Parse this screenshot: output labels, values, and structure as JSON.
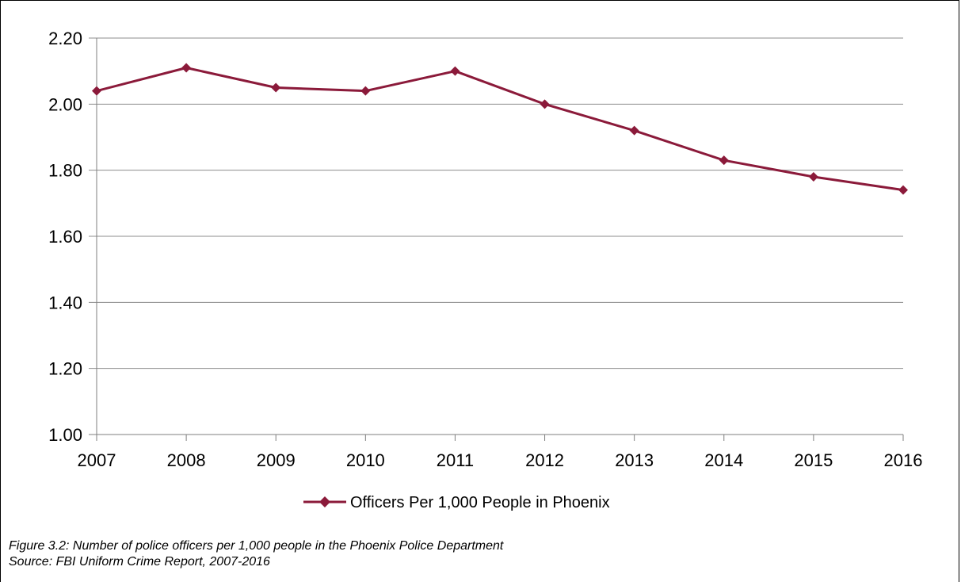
{
  "chart_data": {
    "type": "line",
    "categories": [
      "2007",
      "2008",
      "2009",
      "2010",
      "2011",
      "2012",
      "2013",
      "2014",
      "2015",
      "2016"
    ],
    "series": [
      {
        "name": "Officers Per 1,000 People in Phoenix",
        "values": [
          2.04,
          2.11,
          2.05,
          2.04,
          2.1,
          2.0,
          1.92,
          1.83,
          1.78,
          1.74
        ],
        "color": "#8B1A3A",
        "marker": "diamond"
      }
    ],
    "y_ticks": [
      "1.00",
      "1.20",
      "1.40",
      "1.60",
      "1.80",
      "2.00",
      "2.20"
    ],
    "ylim": [
      1.0,
      2.2
    ],
    "grid": true,
    "legend_position": "bottom"
  },
  "caption": {
    "figure": "Figure 3.2: Number of police officers per 1,000 people in the Phoenix Police Department",
    "source": "Source: FBI Uniform Crime Report, 2007-2016"
  }
}
